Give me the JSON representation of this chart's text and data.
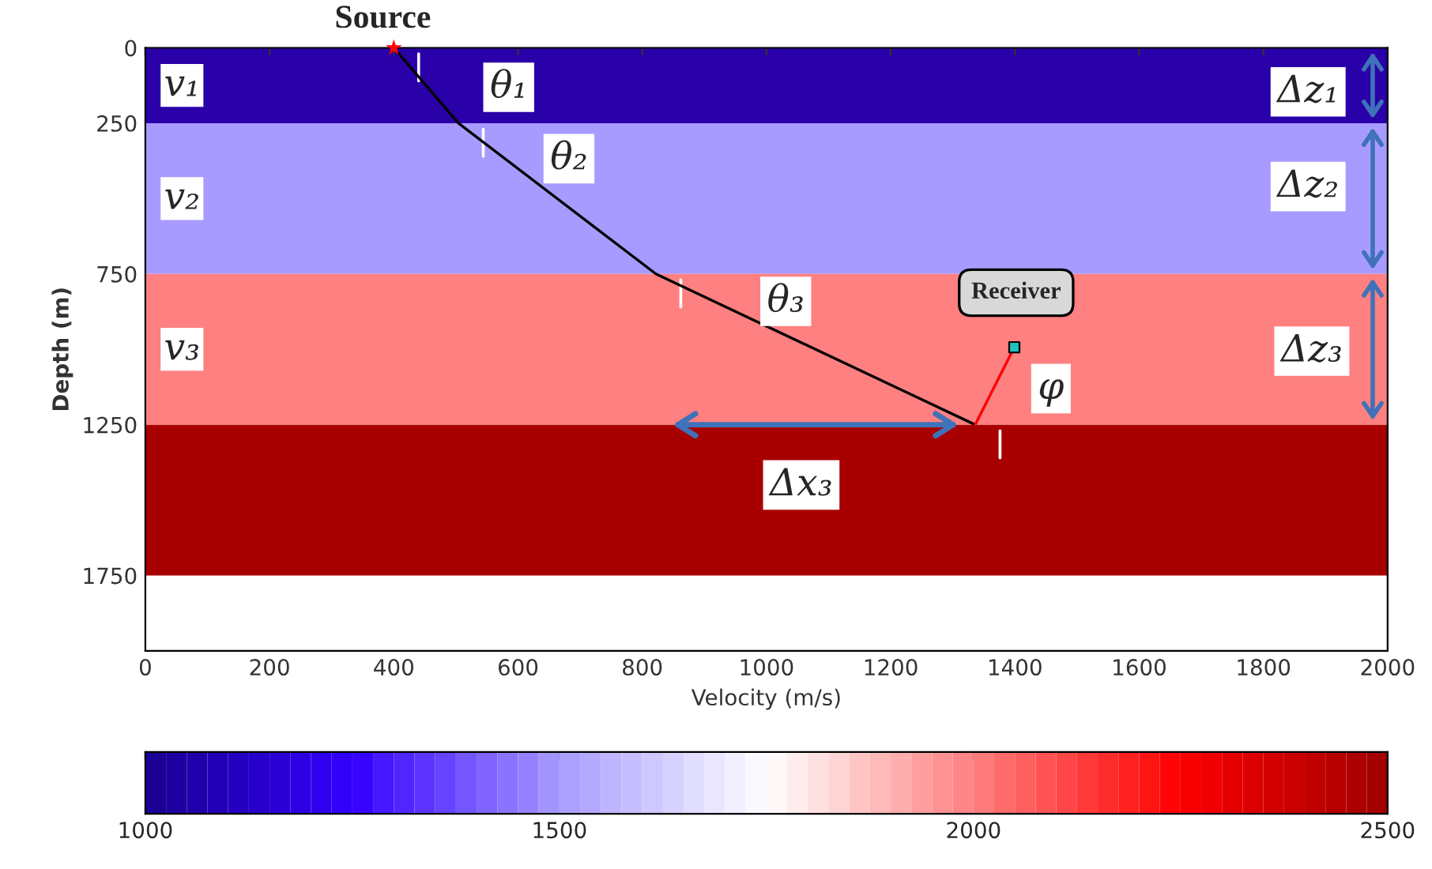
{
  "chart_data": {
    "type": "line",
    "xlabel": "Velocity (m/s)",
    "ylabel": "Depth (m)",
    "xlim": [
      0,
      2000
    ],
    "ylim": [
      2000,
      0
    ],
    "xticks": [
      0,
      200,
      400,
      600,
      800,
      1000,
      1200,
      1400,
      1600,
      1800,
      2000
    ],
    "yticks": [
      0,
      250,
      750,
      1250,
      1750
    ],
    "grid": false,
    "legend": false,
    "clim": [
      1000,
      2500
    ],
    "cticks": [
      1000,
      1500,
      2000,
      2500
    ],
    "bands": [
      {
        "axis": "y",
        "from": 0,
        "to": 250,
        "label": "v₁",
        "color": "#2a00a8"
      },
      {
        "axis": "y",
        "from": 250,
        "to": 750,
        "label": "v₂",
        "color": "#a89bff"
      },
      {
        "axis": "y",
        "from": 750,
        "to": 1250,
        "label": "v₃",
        "color": "#ff8080"
      },
      {
        "axis": "y",
        "from": 1250,
        "to": 1750,
        "label": null,
        "color": "#a80000"
      }
    ],
    "series": [
      {
        "color": "#000000",
        "x": [
          400,
          504,
          822,
          1336
        ],
        "values": [
          0,
          250,
          750,
          1250
        ]
      },
      {
        "color": "#ff0000",
        "x": [
          1336,
          1399
        ],
        "values": [
          1250,
          993
        ]
      },
      {
        "type": "scatter",
        "marker": "star",
        "color": "#ff0000",
        "x": [
          400
        ],
        "values": [
          0
        ]
      },
      {
        "type": "scatter",
        "marker": "square",
        "color": "#20c0c0",
        "x": [
          1399
        ],
        "values": [
          993
        ]
      }
    ],
    "annotations": [
      {
        "text": "Source",
        "x": 400,
        "y": 0
      },
      {
        "text": "θ₁",
        "x": 585,
        "y": 131
      },
      {
        "text": "θ₂",
        "x": 682,
        "y": 368
      },
      {
        "text": "θ₃",
        "x": 1031,
        "y": 841
      },
      "Receiver",
      {
        "text": "φ",
        "x": 1458,
        "y": 1130
      },
      "Δx₃",
      "Δz₁",
      "Δz₂",
      "Δz₃"
    ]
  }
}
